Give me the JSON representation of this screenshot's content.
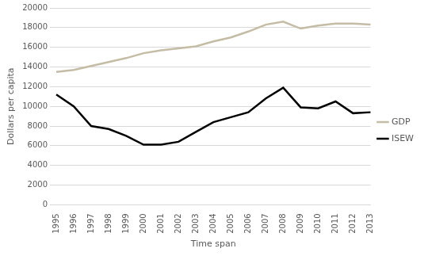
{
  "chart_data": {
    "type": "line",
    "x_label": "Time span",
    "y_label": "Dollars per capita",
    "categories": [
      "1995",
      "1996",
      "1997",
      "1998",
      "1999",
      "2000",
      "2001",
      "2002",
      "2003",
      "2004",
      "2005",
      "2006",
      "2007",
      "2008",
      "2009",
      "2010",
      "2011",
      "2012",
      "2013"
    ],
    "series": [
      {
        "name": "GDP",
        "color": "#c4bca4",
        "values": [
          13500,
          13700,
          14100,
          14500,
          14900,
          15400,
          15700,
          15900,
          16100,
          16600,
          17000,
          17600,
          18300,
          18600,
          17900,
          18200,
          18400,
          18400,
          18300
        ]
      },
      {
        "name": "ISEW",
        "color": "#000000",
        "values": [
          11200,
          10000,
          8000,
          7700,
          7000,
          6100,
          6100,
          6400,
          7400,
          8400,
          8900,
          9400,
          10800,
          11900,
          9900,
          9800,
          10500,
          9300,
          9400
        ]
      }
    ],
    "ylim": [
      0,
      20000
    ],
    "yticks": [
      0,
      2000,
      4000,
      6000,
      8000,
      10000,
      12000,
      14000,
      16000,
      18000,
      20000
    ],
    "grid": true,
    "legend": "right"
  }
}
